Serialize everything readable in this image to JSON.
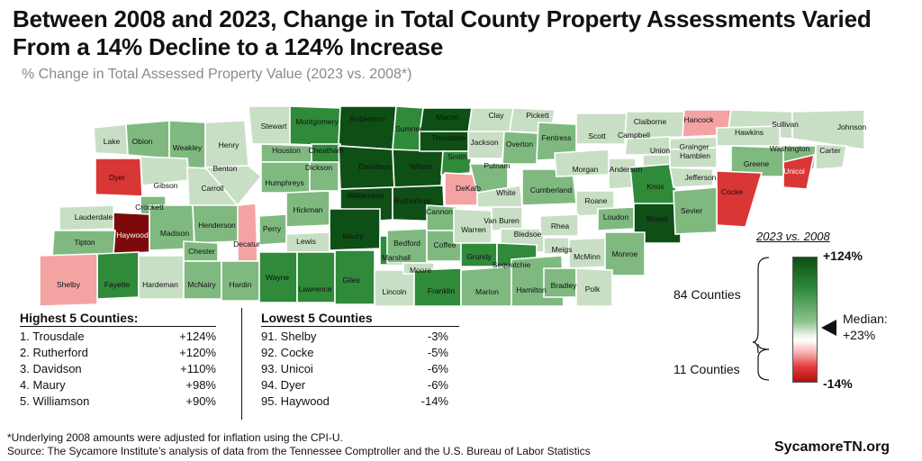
{
  "title": "Between 2008 and 2023, Change in Total County Property Assessments Varied From a 14% Decline to a 124% Increase",
  "subtitle": "% Change in Total Assessed Property Value (2023 vs. 2008*)",
  "colors": {
    "dark_green": "#0e4f15",
    "mid_green": "#2f8a3a",
    "light_green": "#7fb980",
    "pale_green": "#c9dfc5",
    "pale_red": "#f4a3a3",
    "red": "#d93636",
    "dark_red": "#7d0a0a"
  },
  "counties": [
    {
      "name": "Lake",
      "shade": "pale_green"
    },
    {
      "name": "Obion",
      "shade": "light_green"
    },
    {
      "name": "Weakley",
      "shade": "light_green"
    },
    {
      "name": "Henry",
      "shade": "pale_green"
    },
    {
      "name": "Stewart",
      "shade": "pale_green"
    },
    {
      "name": "Montgomery",
      "shade": "mid_green"
    },
    {
      "name": "Robertson",
      "shade": "dark_green"
    },
    {
      "name": "Sumner",
      "shade": "mid_green"
    },
    {
      "name": "Macon",
      "shade": "dark_green"
    },
    {
      "name": "Clay",
      "shade": "pale_green"
    },
    {
      "name": "Pickett",
      "shade": "pale_green"
    },
    {
      "name": "Scott",
      "shade": "pale_green"
    },
    {
      "name": "Claiborne",
      "shade": "pale_green"
    },
    {
      "name": "Hancock",
      "shade": "pale_red"
    },
    {
      "name": "Sullivan",
      "shade": "pale_green"
    },
    {
      "name": "Johnson",
      "shade": "pale_green"
    },
    {
      "name": "Dyer",
      "shade": "red"
    },
    {
      "name": "Gibson",
      "shade": "pale_green"
    },
    {
      "name": "Carroll",
      "shade": "pale_green"
    },
    {
      "name": "Benton",
      "shade": "pale_green"
    },
    {
      "name": "Houston",
      "shade": "light_green"
    },
    {
      "name": "Cheatham",
      "shade": "mid_green"
    },
    {
      "name": "Davidson",
      "shade": "dark_green"
    },
    {
      "name": "Wilson",
      "shade": "dark_green"
    },
    {
      "name": "Trousdale",
      "shade": "dark_green"
    },
    {
      "name": "Smith",
      "shade": "mid_green"
    },
    {
      "name": "Jackson",
      "shade": "pale_green"
    },
    {
      "name": "Overton",
      "shade": "light_green"
    },
    {
      "name": "Fentress",
      "shade": "light_green"
    },
    {
      "name": "Campbell",
      "shade": "pale_green"
    },
    {
      "name": "Union",
      "shade": "pale_green"
    },
    {
      "name": "Grainger",
      "shade": "pale_green"
    },
    {
      "name": "Hawkins",
      "shade": "pale_green"
    },
    {
      "name": "Washington",
      "shade": "light_green"
    },
    {
      "name": "Carter",
      "shade": "pale_green"
    },
    {
      "name": "Unicoi",
      "shade": "red"
    },
    {
      "name": "Humphreys",
      "shade": "light_green"
    },
    {
      "name": "Dickson",
      "shade": "light_green"
    },
    {
      "name": "Williamson",
      "shade": "dark_green"
    },
    {
      "name": "Rutherford",
      "shade": "dark_green"
    },
    {
      "name": "DeKalb",
      "shade": "pale_red"
    },
    {
      "name": "Putnam",
      "shade": "light_green"
    },
    {
      "name": "White",
      "shade": "pale_green"
    },
    {
      "name": "Cumberland",
      "shade": "light_green"
    },
    {
      "name": "Morgan",
      "shade": "pale_green"
    },
    {
      "name": "Anderson",
      "shade": "pale_green"
    },
    {
      "name": "Knox",
      "shade": "mid_green"
    },
    {
      "name": "Jefferson",
      "shade": "pale_green"
    },
    {
      "name": "Hamblen",
      "shade": "pale_green"
    },
    {
      "name": "Greene",
      "shade": "light_green"
    },
    {
      "name": "Cocke",
      "shade": "red"
    },
    {
      "name": "Lauderdale",
      "shade": "pale_green"
    },
    {
      "name": "Crockett",
      "shade": "light_green"
    },
    {
      "name": "Haywood",
      "shade": "dark_red"
    },
    {
      "name": "Madison",
      "shade": "light_green"
    },
    {
      "name": "Henderson",
      "shade": "light_green"
    },
    {
      "name": "Decatur",
      "shade": "pale_red"
    },
    {
      "name": "Perry",
      "shade": "light_green"
    },
    {
      "name": "Hickman",
      "shade": "light_green"
    },
    {
      "name": "Maury",
      "shade": "dark_green"
    },
    {
      "name": "Lewis",
      "shade": "pale_green"
    },
    {
      "name": "Marshall",
      "shade": "mid_green"
    },
    {
      "name": "Bedford",
      "shade": "light_green"
    },
    {
      "name": "Cannon",
      "shade": "light_green"
    },
    {
      "name": "Coffee",
      "shade": "light_green"
    },
    {
      "name": "Warren",
      "shade": "pale_green"
    },
    {
      "name": "Van Buren",
      "shade": "pale_green"
    },
    {
      "name": "Bledsoe",
      "shade": "pale_green"
    },
    {
      "name": "Roane",
      "shade": "pale_green"
    },
    {
      "name": "Loudon",
      "shade": "light_green"
    },
    {
      "name": "Blount",
      "shade": "dark_green"
    },
    {
      "name": "Sevier",
      "shade": "light_green"
    },
    {
      "name": "Rhea",
      "shade": "pale_green"
    },
    {
      "name": "Meigs",
      "shade": "pale_green"
    },
    {
      "name": "McMinn",
      "shade": "pale_green"
    },
    {
      "name": "Monroe",
      "shade": "light_green"
    },
    {
      "name": "Tipton",
      "shade": "light_green"
    },
    {
      "name": "Fayette",
      "shade": "mid_green"
    },
    {
      "name": "Hardeman",
      "shade": "pale_green"
    },
    {
      "name": "Chester",
      "shade": "light_green"
    },
    {
      "name": "McNairy",
      "shade": "light_green"
    },
    {
      "name": "Hardin",
      "shade": "light_green"
    },
    {
      "name": "Wayne",
      "shade": "mid_green"
    },
    {
      "name": "Lawrence",
      "shade": "mid_green"
    },
    {
      "name": "Giles",
      "shade": "mid_green"
    },
    {
      "name": "Lincoln",
      "shade": "pale_green"
    },
    {
      "name": "Moore",
      "shade": "pale_green"
    },
    {
      "name": "Franklin",
      "shade": "mid_green"
    },
    {
      "name": "Grundy",
      "shade": "mid_green"
    },
    {
      "name": "Marion",
      "shade": "light_green"
    },
    {
      "name": "Sequatchie",
      "shade": "mid_green"
    },
    {
      "name": "Hamilton",
      "shade": "light_green"
    },
    {
      "name": "Bradley",
      "shade": "light_green"
    },
    {
      "name": "Polk",
      "shade": "pale_green"
    },
    {
      "name": "Shelby",
      "shade": "pale_red"
    }
  ],
  "highest": {
    "heading": "Highest 5 Counties:",
    "rows": [
      {
        "rank": "1. Trousdale",
        "value": "+124%"
      },
      {
        "rank": "2. Rutherford",
        "value": "+120%"
      },
      {
        "rank": "3. Davidson",
        "value": "+110%"
      },
      {
        "rank": "4. Maury",
        "value": "+98%"
      },
      {
        "rank": "5. Williamson",
        "value": "+90%"
      }
    ]
  },
  "lowest": {
    "heading": "Lowest 5 Counties",
    "rows": [
      {
        "rank": "91. Shelby",
        "value": "-3%"
      },
      {
        "rank": "92. Cocke",
        "value": "-5%"
      },
      {
        "rank": "93. Unicoi",
        "value": "-6%"
      },
      {
        "rank": "94. Dyer",
        "value": "-6%"
      },
      {
        "rank": "95. Haywood",
        "value": "-14%"
      }
    ]
  },
  "legend": {
    "title": "2023 vs. 2008",
    "max_label": "+124%",
    "min_label": "-14%",
    "above_count": "84 Counties",
    "below_count": "11 Counties",
    "median_label": "Median:",
    "median_value": "+23%"
  },
  "footnote": "*Underlying 2008 amounts were adjusted for inflation using the CPI-U.",
  "source": "Source: The Sycamore Institute’s analysis of data from the Tennessee Comptroller and the U.S. Bureau of Labor Statistics",
  "brand": "SycamoreTN.org"
}
